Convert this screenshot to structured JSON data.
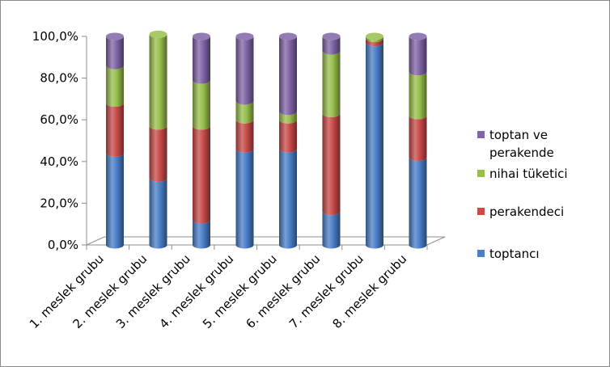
{
  "chart_data": {
    "type": "bar",
    "stacked": true,
    "percent": true,
    "categories": [
      "1. meslek grubu",
      "2. meslek grubu",
      "3. meslek grubu",
      "4. meslek grubu",
      "5. meslek grubu",
      "6. meslek grubu",
      "7. meslek grubu",
      "8. meslek grubu"
    ],
    "series": [
      {
        "name": "toptancı",
        "color": "#4a7fc8",
        "values": [
          44,
          32,
          12,
          46,
          46,
          16,
          97,
          42
        ]
      },
      {
        "name": "perakendeci",
        "color": "#c84b48",
        "values": [
          24,
          25,
          45,
          14,
          14,
          47,
          2,
          20
        ]
      },
      {
        "name": "nihai tüketici",
        "color": "#98bf4b",
        "values": [
          18,
          44,
          22,
          9,
          4,
          30,
          1,
          21
        ]
      },
      {
        "name": "toptan ve perakende",
        "color": "#8064a6",
        "values": [
          14,
          0,
          21,
          31,
          36,
          7,
          0,
          17
        ]
      }
    ],
    "legend": {
      "position": "right",
      "order": [
        "toptan ve perakende",
        "nihai tüketici",
        "perakendeci",
        "toptancı"
      ],
      "lines": {
        "toptan ve perakende": [
          "toptan ve",
          "perakende"
        ],
        "nihai tüketici": [
          "nihai tüketici"
        ],
        "perakendeci": [
          "perakendeci"
        ],
        "toptancı": [
          "toptancı"
        ]
      }
    },
    "y_ticks": [
      "0,0%",
      "20,0%",
      "40,0%",
      "60,0%",
      "80,0%",
      "100,0%"
    ],
    "ylim": [
      0,
      100
    ],
    "title": "",
    "xlabel": "",
    "ylabel": "",
    "grid": false
  }
}
